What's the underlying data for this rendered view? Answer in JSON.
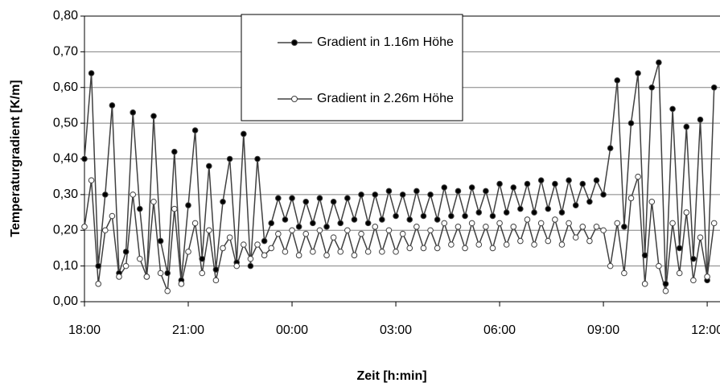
{
  "chart_data": {
    "type": "line",
    "xlabel": "Zeit [h:min]",
    "ylabel": "Temperaturgradient [K/m]",
    "x": [
      18.0,
      18.2,
      18.4,
      18.6,
      18.8,
      19.0,
      19.2,
      19.4,
      19.6,
      19.8,
      20.0,
      20.2,
      20.4,
      20.6,
      20.8,
      21.0,
      21.2,
      21.4,
      21.6,
      21.8,
      22.0,
      22.2,
      22.4,
      22.6,
      22.8,
      23.0,
      23.2,
      23.4,
      23.6,
      23.8,
      24.0,
      24.2,
      24.4,
      24.6,
      24.8,
      25.0,
      25.2,
      25.4,
      25.6,
      25.8,
      26.0,
      26.2,
      26.4,
      26.6,
      26.8,
      27.0,
      27.2,
      27.4,
      27.6,
      27.8,
      28.0,
      28.2,
      28.4,
      28.6,
      28.8,
      29.0,
      29.2,
      29.4,
      29.6,
      29.8,
      30.0,
      30.2,
      30.4,
      30.6,
      30.8,
      31.0,
      31.2,
      31.4,
      31.6,
      31.8,
      32.0,
      32.2,
      32.4,
      32.6,
      32.8,
      33.0,
      33.2,
      33.4,
      33.6,
      33.8,
      34.0,
      34.2,
      34.4,
      34.6,
      34.8,
      35.0,
      35.2,
      35.4,
      35.6,
      35.8,
      36.0,
      36.2
    ],
    "series": [
      {
        "name": "Gradient in 1.16m Höhe",
        "color": "#404040",
        "marker_fill": "#000000",
        "values": [
          0.4,
          0.64,
          0.1,
          0.3,
          0.55,
          0.08,
          0.14,
          0.53,
          0.26,
          0.07,
          0.52,
          0.17,
          0.08,
          0.42,
          0.06,
          0.27,
          0.48,
          0.12,
          0.38,
          0.09,
          0.28,
          0.4,
          0.11,
          0.47,
          0.1,
          0.4,
          0.17,
          0.22,
          0.29,
          0.23,
          0.29,
          0.21,
          0.28,
          0.22,
          0.29,
          0.21,
          0.28,
          0.22,
          0.29,
          0.23,
          0.3,
          0.22,
          0.3,
          0.23,
          0.31,
          0.24,
          0.3,
          0.23,
          0.31,
          0.24,
          0.3,
          0.23,
          0.32,
          0.24,
          0.31,
          0.24,
          0.32,
          0.25,
          0.31,
          0.24,
          0.33,
          0.25,
          0.32,
          0.26,
          0.33,
          0.25,
          0.34,
          0.26,
          0.33,
          0.25,
          0.34,
          0.27,
          0.33,
          0.28,
          0.34,
          0.3,
          0.43,
          0.62,
          0.21,
          0.5,
          0.64,
          0.13,
          0.6,
          0.67,
          0.05,
          0.54,
          0.15,
          0.49,
          0.12,
          0.51,
          0.06,
          0.6
        ]
      },
      {
        "name": "Gradient in 2.26m Höhe",
        "color": "#404040",
        "marker_fill": "#ffffff",
        "values": [
          0.21,
          0.34,
          0.05,
          0.2,
          0.24,
          0.07,
          0.1,
          0.3,
          0.12,
          0.07,
          0.28,
          0.08,
          0.03,
          0.26,
          0.05,
          0.14,
          0.22,
          0.08,
          0.2,
          0.06,
          0.15,
          0.18,
          0.1,
          0.16,
          0.12,
          0.16,
          0.13,
          0.15,
          0.19,
          0.14,
          0.2,
          0.13,
          0.19,
          0.14,
          0.2,
          0.13,
          0.18,
          0.14,
          0.2,
          0.13,
          0.19,
          0.14,
          0.21,
          0.14,
          0.2,
          0.14,
          0.19,
          0.15,
          0.21,
          0.15,
          0.2,
          0.15,
          0.22,
          0.16,
          0.21,
          0.15,
          0.22,
          0.16,
          0.21,
          0.15,
          0.22,
          0.16,
          0.21,
          0.17,
          0.23,
          0.16,
          0.22,
          0.17,
          0.23,
          0.16,
          0.22,
          0.18,
          0.21,
          0.17,
          0.21,
          0.2,
          0.1,
          0.22,
          0.08,
          0.29,
          0.35,
          0.05,
          0.28,
          0.1,
          0.03,
          0.22,
          0.08,
          0.25,
          0.06,
          0.18,
          0.07,
          0.22
        ]
      }
    ],
    "xlim": [
      18,
      36.37
    ],
    "xticks": [
      {
        "value": 18,
        "label": "18:00"
      },
      {
        "value": 21,
        "label": "21:00"
      },
      {
        "value": 24,
        "label": "00:00"
      },
      {
        "value": 27,
        "label": "03:00"
      },
      {
        "value": 30,
        "label": "06:00"
      },
      {
        "value": 33,
        "label": "09:00"
      },
      {
        "value": 36,
        "label": "12:00"
      }
    ],
    "ylim": [
      0,
      0.8
    ],
    "yticks": [
      {
        "value": 0,
        "label": "0,00"
      },
      {
        "value": 0.1,
        "label": "0,10"
      },
      {
        "value": 0.2,
        "label": "0,20"
      },
      {
        "value": 0.3,
        "label": "0,30"
      },
      {
        "value": 0.4,
        "label": "0,40"
      },
      {
        "value": 0.5,
        "label": "0,50"
      },
      {
        "value": 0.6,
        "label": "0,60"
      },
      {
        "value": 0.7,
        "label": "0,70"
      },
      {
        "value": 0.8,
        "label": "0,80"
      }
    ],
    "grid": true
  }
}
